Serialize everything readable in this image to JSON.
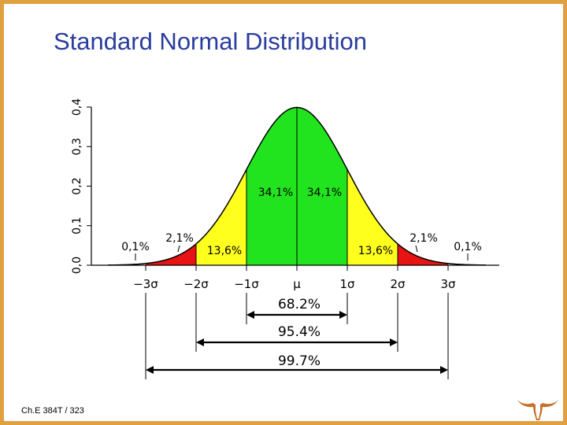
{
  "slide": {
    "title": "Standard Normal Distribution",
    "footer": "Ch.E 384T / 323"
  },
  "colors": {
    "center": "#22e41e",
    "middle": "#ffff1e",
    "tail": "#e81414",
    "border": "#e0a040",
    "title": "#2a3c9e",
    "logo": "#c8702a"
  },
  "logo_icon": "longhorn-logo-icon",
  "chart_data": {
    "type": "area",
    "x_tick_labels": [
      "−3σ",
      "−2σ",
      "−1σ",
      "μ",
      "1σ",
      "2σ",
      "3σ"
    ],
    "x_tick_values": [
      -3,
      -2,
      -1,
      0,
      1,
      2,
      3
    ],
    "y_tick_labels": [
      "0,0",
      "0,1",
      "0,2",
      "0,3",
      "0,4"
    ],
    "y_tick_values": [
      0,
      0.1,
      0.2,
      0.3,
      0.4
    ],
    "ylim": [
      0,
      0.4
    ],
    "xlim": [
      -3.75,
      3.75
    ],
    "regions": [
      {
        "from": -3,
        "to": -2,
        "label": "2,1%",
        "value": 2.1,
        "color": "tail"
      },
      {
        "from": -2,
        "to": -1,
        "label": "13,6%",
        "value": 13.6,
        "color": "middle"
      },
      {
        "from": -1,
        "to": 0,
        "label": "34,1%",
        "value": 34.1,
        "color": "center"
      },
      {
        "from": 0,
        "to": 1,
        "label": "34,1%",
        "value": 34.1,
        "color": "center"
      },
      {
        "from": 1,
        "to": 2,
        "label": "13,6%",
        "value": 13.6,
        "color": "middle"
      },
      {
        "from": 2,
        "to": 3,
        "label": "2,1%",
        "value": 2.1,
        "color": "tail"
      }
    ],
    "outer_tails": [
      {
        "side": "left",
        "label": "0,1%",
        "value": 0.1
      },
      {
        "side": "right",
        "label": "0,1%",
        "value": 0.1
      }
    ],
    "ranges": [
      {
        "from": -1,
        "to": 1,
        "label": "68.2%",
        "value": 68.2
      },
      {
        "from": -2,
        "to": 2,
        "label": "95.4%",
        "value": 95.4
      },
      {
        "from": -3,
        "to": 3,
        "label": "99.7%",
        "value": 99.7
      }
    ]
  }
}
